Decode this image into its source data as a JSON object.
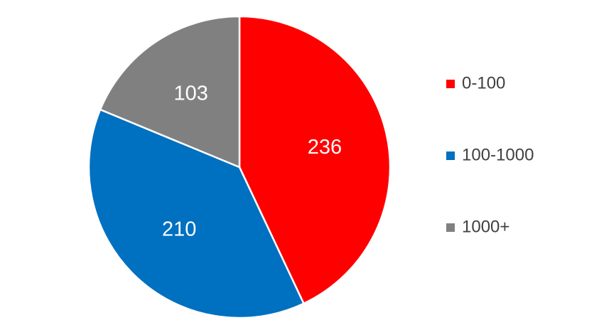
{
  "chart_data": {
    "type": "pie",
    "categories": [
      "0-100",
      "100-1000",
      "1000+"
    ],
    "values": [
      236,
      210,
      103
    ],
    "colors": [
      "#ff0000",
      "#0070c0",
      "#808080"
    ],
    "legend": "right"
  }
}
